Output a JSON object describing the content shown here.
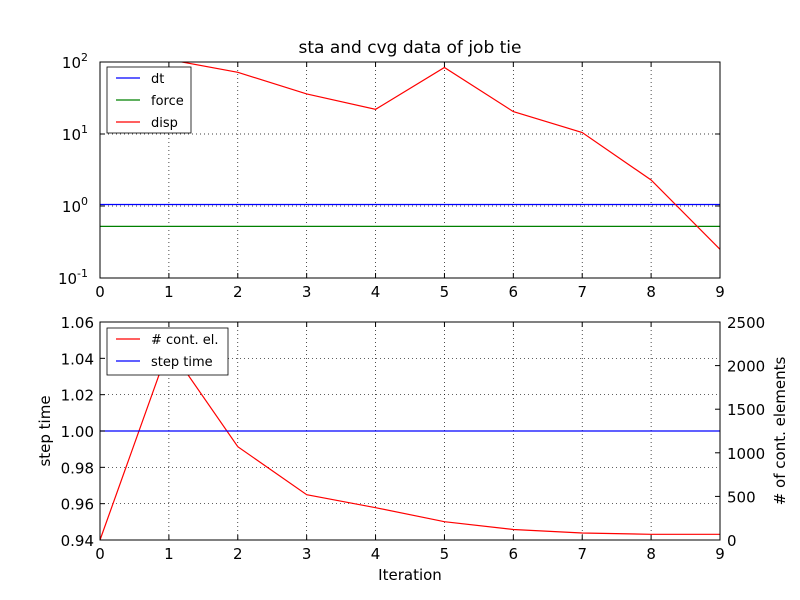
{
  "chart_data": [
    {
      "type": "line",
      "title": "sta and cvg data of job tie",
      "xlabel": "",
      "ylabel": "",
      "yscale": "log",
      "xlim": [
        0,
        9
      ],
      "ylim": [
        0.1,
        100
      ],
      "x": [
        0,
        1,
        2,
        3,
        4,
        5,
        6,
        7,
        8,
        9
      ],
      "x_tick_labels": [
        "0",
        "1",
        "2",
        "3",
        "4",
        "5",
        "6",
        "7",
        "8",
        "9"
      ],
      "y_ticks": [
        {
          "value": 100,
          "base": "10",
          "exp": "2"
        },
        {
          "value": 10,
          "base": "10",
          "exp": "1"
        },
        {
          "value": 1,
          "base": "10",
          "exp": "0"
        },
        {
          "value": 0.1,
          "base": "10",
          "exp": "-1"
        }
      ],
      "grid": true,
      "legend": "top-left",
      "series": [
        {
          "name": "dt",
          "color": "#0000ff",
          "values": [
            1.05,
            1.05,
            1.05,
            1.05,
            1.05,
            1.05,
            1.05,
            1.05,
            1.05,
            1.05
          ]
        },
        {
          "name": "force",
          "color": "#008000",
          "values": [
            0.52,
            0.52,
            0.52,
            0.52,
            0.52,
            0.52,
            0.52,
            0.52,
            0.52,
            0.52
          ]
        },
        {
          "name": "disp",
          "color": "#ff0000",
          "values": [
            null,
            108,
            72,
            36,
            22,
            84,
            20.5,
            10.5,
            2.3,
            0.25
          ]
        }
      ]
    },
    {
      "type": "line",
      "title": "",
      "xlabel": "Iteration",
      "xlim": [
        0,
        9
      ],
      "x": [
        0,
        1,
        2,
        3,
        4,
        5,
        6,
        7,
        8,
        9
      ],
      "x_tick_labels": [
        "0",
        "1",
        "2",
        "3",
        "4",
        "5",
        "6",
        "7",
        "8",
        "9"
      ],
      "y_left": {
        "label": "step time",
        "lim": [
          0.94,
          1.06
        ],
        "ticks": [
          0.94,
          0.96,
          0.98,
          1.0,
          1.02,
          1.04,
          1.06
        ],
        "tick_labels": [
          "0.94",
          "0.96",
          "0.98",
          "1.00",
          "1.02",
          "1.04",
          "1.06"
        ]
      },
      "y_right": {
        "label": "# of cont. elements",
        "lim": [
          0,
          2500
        ],
        "ticks": [
          0,
          500,
          1000,
          1500,
          2000,
          2500
        ],
        "tick_labels": [
          "0",
          "500",
          "1000",
          "1500",
          "2000",
          "2500"
        ]
      },
      "grid": true,
      "legend": "top-left",
      "series": [
        {
          "name": "# cont. el.",
          "color": "#ff0000",
          "axis": "right",
          "values": [
            0,
            2210,
            1070,
            520,
            370,
            210,
            120,
            80,
            65,
            65
          ]
        },
        {
          "name": "step time",
          "color": "#0000ff",
          "axis": "left",
          "values": [
            1.0,
            1.0,
            1.0,
            1.0,
            1.0,
            1.0,
            1.0,
            1.0,
            1.0,
            1.0
          ]
        }
      ]
    }
  ]
}
